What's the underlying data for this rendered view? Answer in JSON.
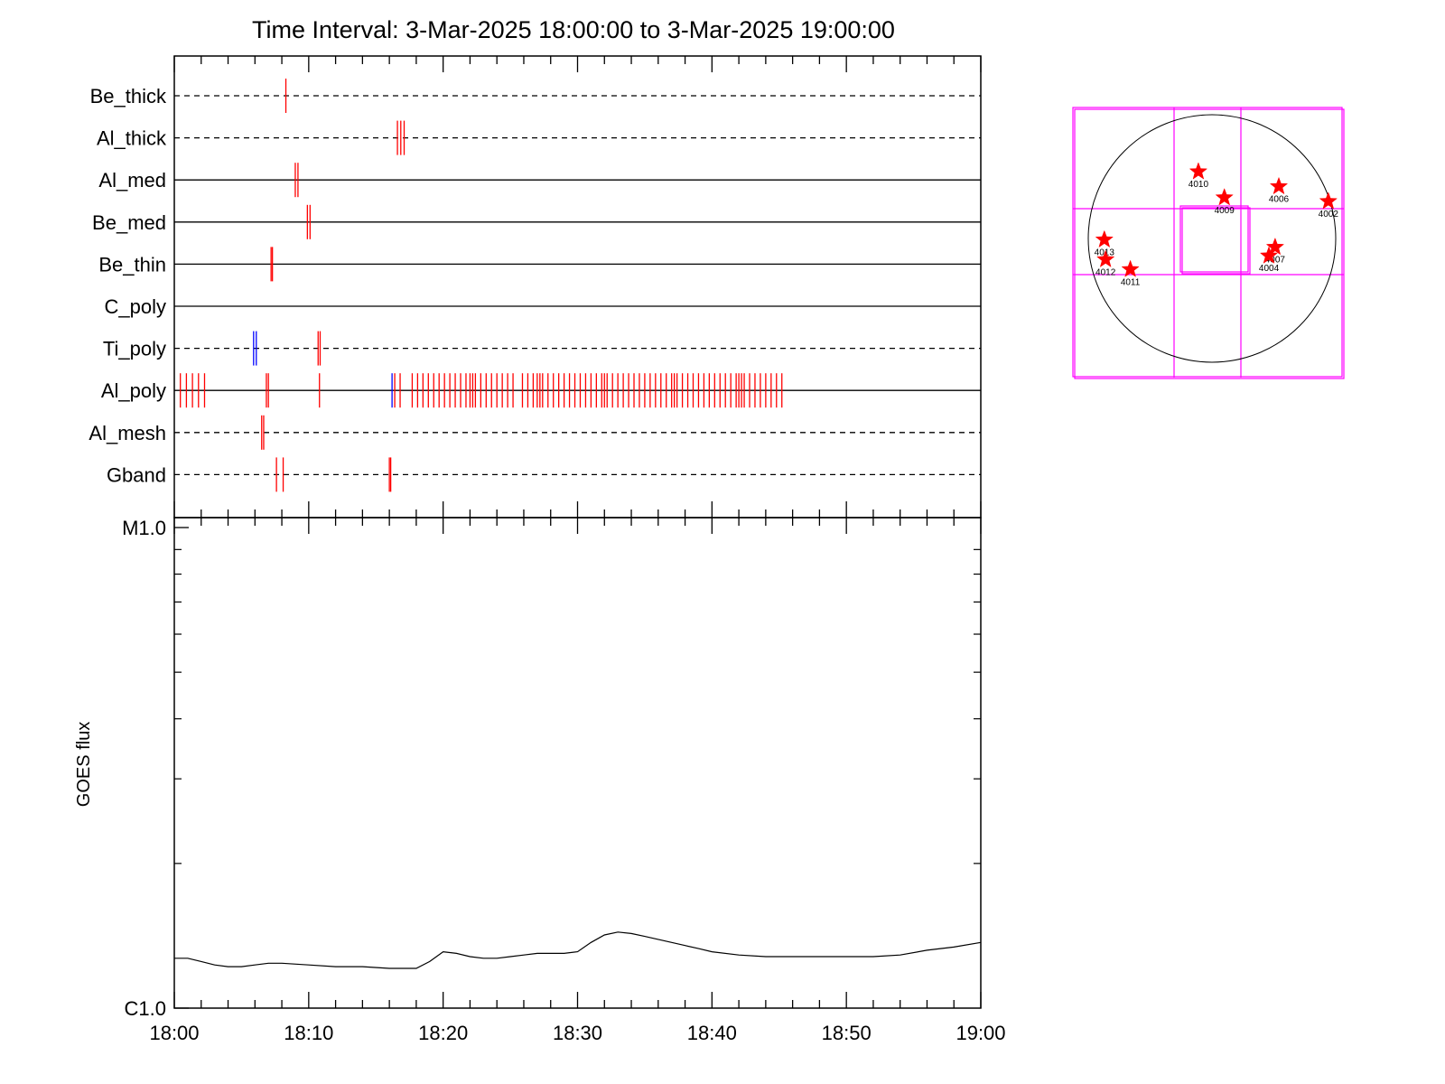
{
  "chart_data": [
    {
      "type": "scatter",
      "title": "Time Interval:  3-Mar-2025 18:00:00 to  3-Mar-2025 19:00:00",
      "xlabel": "",
      "x_units": "minutes after 18:00",
      "xlim": [
        0,
        60
      ],
      "x_tick_labels": [
        "18:00",
        "18:10",
        "18:20",
        "18:30",
        "18:40",
        "18:50",
        "19:00"
      ],
      "channels": [
        {
          "name": "Be_thick",
          "line": "dashed",
          "events": [
            {
              "t": 8.3,
              "color": "#ff0000"
            }
          ]
        },
        {
          "name": "Al_thick",
          "line": "dashed",
          "events": [
            {
              "t": 16.6,
              "color": "#ff0000"
            },
            {
              "t": 16.85,
              "color": "#ff0000"
            },
            {
              "t": 17.1,
              "color": "#ff0000"
            }
          ]
        },
        {
          "name": "Al_med",
          "line": "solid",
          "events": [
            {
              "t": 9.0,
              "color": "#ff0000"
            },
            {
              "t": 9.2,
              "color": "#ff0000"
            }
          ]
        },
        {
          "name": "Be_med",
          "line": "solid",
          "events": [
            {
              "t": 9.9,
              "color": "#ff0000"
            },
            {
              "t": 10.1,
              "color": "#ff0000"
            }
          ]
        },
        {
          "name": "Be_thin",
          "line": "solid",
          "events": [
            {
              "t": 7.2,
              "color": "#ff0000"
            },
            {
              "t": 7.3,
              "color": "#ff0000"
            }
          ]
        },
        {
          "name": "C_poly",
          "line": "solid",
          "events": []
        },
        {
          "name": "Ti_poly",
          "line": "dashed",
          "events": [
            {
              "t": 5.9,
              "color": "#0000ff"
            },
            {
              "t": 6.1,
              "color": "#0000ff"
            },
            {
              "t": 10.7,
              "color": "#ff0000"
            },
            {
              "t": 10.85,
              "color": "#ff0000"
            }
          ]
        },
        {
          "name": "Al_poly",
          "line": "solid",
          "events": [
            {
              "t": 0.45,
              "color": "#ff0000"
            },
            {
              "t": 0.9,
              "color": "#ff0000"
            },
            {
              "t": 1.35,
              "color": "#ff0000"
            },
            {
              "t": 1.8,
              "color": "#ff0000"
            },
            {
              "t": 2.25,
              "color": "#ff0000"
            },
            {
              "t": 6.85,
              "color": "#ff0000"
            },
            {
              "t": 7.0,
              "color": "#ff0000"
            },
            {
              "t": 10.8,
              "color": "#ff0000"
            },
            {
              "t": 16.2,
              "color": "#0000ff"
            },
            {
              "t": 16.4,
              "color": "#ff0000"
            },
            {
              "t": 16.8,
              "color": "#ff0000"
            },
            {
              "t": 17.7,
              "color": "#ff0000"
            },
            {
              "t": 18.1,
              "color": "#ff0000"
            },
            {
              "t": 18.5,
              "color": "#ff0000"
            },
            {
              "t": 18.9,
              "color": "#ff0000"
            },
            {
              "t": 19.3,
              "color": "#ff0000"
            },
            {
              "t": 19.7,
              "color": "#ff0000"
            },
            {
              "t": 20.1,
              "color": "#ff0000"
            },
            {
              "t": 20.5,
              "color": "#ff0000"
            },
            {
              "t": 20.9,
              "color": "#ff0000"
            },
            {
              "t": 21.3,
              "color": "#ff0000"
            },
            {
              "t": 21.7,
              "color": "#ff0000"
            },
            {
              "t": 22.0,
              "color": "#ff0000"
            },
            {
              "t": 22.2,
              "color": "#ff0000"
            },
            {
              "t": 22.4,
              "color": "#ff0000"
            },
            {
              "t": 22.8,
              "color": "#ff0000"
            },
            {
              "t": 23.2,
              "color": "#ff0000"
            },
            {
              "t": 23.6,
              "color": "#ff0000"
            },
            {
              "t": 24.0,
              "color": "#ff0000"
            },
            {
              "t": 24.4,
              "color": "#ff0000"
            },
            {
              "t": 24.8,
              "color": "#ff0000"
            },
            {
              "t": 25.2,
              "color": "#ff0000"
            },
            {
              "t": 25.9,
              "color": "#ff0000"
            },
            {
              "t": 26.3,
              "color": "#ff0000"
            },
            {
              "t": 26.7,
              "color": "#ff0000"
            },
            {
              "t": 27.0,
              "color": "#ff0000"
            },
            {
              "t": 27.2,
              "color": "#ff0000"
            },
            {
              "t": 27.4,
              "color": "#ff0000"
            },
            {
              "t": 27.8,
              "color": "#ff0000"
            },
            {
              "t": 28.2,
              "color": "#ff0000"
            },
            {
              "t": 28.6,
              "color": "#ff0000"
            },
            {
              "t": 29.0,
              "color": "#ff0000"
            },
            {
              "t": 29.4,
              "color": "#ff0000"
            },
            {
              "t": 29.8,
              "color": "#ff0000"
            },
            {
              "t": 30.2,
              "color": "#ff0000"
            },
            {
              "t": 30.6,
              "color": "#ff0000"
            },
            {
              "t": 31.0,
              "color": "#ff0000"
            },
            {
              "t": 31.4,
              "color": "#ff0000"
            },
            {
              "t": 31.8,
              "color": "#ff0000"
            },
            {
              "t": 32.0,
              "color": "#ff0000"
            },
            {
              "t": 32.2,
              "color": "#ff0000"
            },
            {
              "t": 32.6,
              "color": "#ff0000"
            },
            {
              "t": 33.0,
              "color": "#ff0000"
            },
            {
              "t": 33.4,
              "color": "#ff0000"
            },
            {
              "t": 33.8,
              "color": "#ff0000"
            },
            {
              "t": 34.2,
              "color": "#ff0000"
            },
            {
              "t": 34.6,
              "color": "#ff0000"
            },
            {
              "t": 35.0,
              "color": "#ff0000"
            },
            {
              "t": 35.4,
              "color": "#ff0000"
            },
            {
              "t": 35.8,
              "color": "#ff0000"
            },
            {
              "t": 36.2,
              "color": "#ff0000"
            },
            {
              "t": 36.6,
              "color": "#ff0000"
            },
            {
              "t": 37.0,
              "color": "#ff0000"
            },
            {
              "t": 37.2,
              "color": "#ff0000"
            },
            {
              "t": 37.4,
              "color": "#ff0000"
            },
            {
              "t": 37.8,
              "color": "#ff0000"
            },
            {
              "t": 38.2,
              "color": "#ff0000"
            },
            {
              "t": 38.6,
              "color": "#ff0000"
            },
            {
              "t": 39.0,
              "color": "#ff0000"
            },
            {
              "t": 39.4,
              "color": "#ff0000"
            },
            {
              "t": 39.8,
              "color": "#ff0000"
            },
            {
              "t": 40.2,
              "color": "#ff0000"
            },
            {
              "t": 40.6,
              "color": "#ff0000"
            },
            {
              "t": 41.0,
              "color": "#ff0000"
            },
            {
              "t": 41.4,
              "color": "#ff0000"
            },
            {
              "t": 41.8,
              "color": "#ff0000"
            },
            {
              "t": 42.0,
              "color": "#ff0000"
            },
            {
              "t": 42.2,
              "color": "#ff0000"
            },
            {
              "t": 42.4,
              "color": "#ff0000"
            },
            {
              "t": 42.8,
              "color": "#ff0000"
            },
            {
              "t": 43.2,
              "color": "#ff0000"
            },
            {
              "t": 43.6,
              "color": "#ff0000"
            },
            {
              "t": 44.0,
              "color": "#ff0000"
            },
            {
              "t": 44.4,
              "color": "#ff0000"
            },
            {
              "t": 44.8,
              "color": "#ff0000"
            },
            {
              "t": 45.2,
              "color": "#ff0000"
            }
          ]
        },
        {
          "name": "Al_mesh",
          "line": "dashed",
          "events": [
            {
              "t": 6.5,
              "color": "#ff0000"
            },
            {
              "t": 6.65,
              "color": "#ff0000"
            }
          ]
        },
        {
          "name": "Gband",
          "line": "dashed",
          "events": [
            {
              "t": 7.6,
              "color": "#ff0000"
            },
            {
              "t": 8.1,
              "color": "#ff0000"
            },
            {
              "t": 16.0,
              "color": "#ff0000"
            },
            {
              "t": 16.1,
              "color": "#ff0000"
            }
          ]
        }
      ]
    },
    {
      "type": "line",
      "ylabel": "GOES flux",
      "yscale": "log",
      "ylim": [
        1e-06,
        1e-05
      ],
      "y_tick_labels": [
        "C1.0",
        "M1.0"
      ],
      "xlim": [
        0,
        60
      ],
      "x_units": "minutes after 18:00",
      "x_tick_labels": [
        "18:00",
        "18:10",
        "18:20",
        "18:30",
        "18:40",
        "18:50",
        "19:00"
      ],
      "series": [
        {
          "x": [
            0,
            1,
            2,
            3,
            4,
            5,
            6,
            7,
            8,
            10,
            12,
            14,
            16,
            17,
            18,
            19,
            20,
            21,
            22,
            23,
            24,
            25,
            26,
            27,
            28,
            29,
            30,
            31,
            32,
            33,
            34,
            35,
            36,
            37,
            38,
            39,
            40,
            42,
            44,
            45,
            46,
            47,
            48,
            50,
            52,
            54,
            56,
            58,
            60
          ],
          "y": [
            1.27e-06,
            1.27e-06,
            1.25e-06,
            1.23e-06,
            1.22e-06,
            1.22e-06,
            1.23e-06,
            1.24e-06,
            1.24e-06,
            1.23e-06,
            1.22e-06,
            1.22e-06,
            1.21e-06,
            1.21e-06,
            1.21e-06,
            1.25e-06,
            1.31e-06,
            1.3e-06,
            1.28e-06,
            1.27e-06,
            1.27e-06,
            1.28e-06,
            1.29e-06,
            1.3e-06,
            1.3e-06,
            1.3e-06,
            1.31e-06,
            1.37e-06,
            1.42e-06,
            1.44e-06,
            1.43e-06,
            1.41e-06,
            1.39e-06,
            1.37e-06,
            1.35e-06,
            1.33e-06,
            1.31e-06,
            1.29e-06,
            1.28e-06,
            1.28e-06,
            1.28e-06,
            1.28e-06,
            1.28e-06,
            1.28e-06,
            1.28e-06,
            1.29e-06,
            1.32e-06,
            1.34e-06,
            1.37e-06
          ]
        }
      ]
    },
    {
      "type": "scatter",
      "layout": "solar-disk map with instrument field-of-view boxes",
      "units": "solar-disk coordinates, disk radius = 1, +x = west, +y = north",
      "disk_radius": 1.0,
      "fov_color": "#ff00ff",
      "marker_color": "#ff0000",
      "points": [
        {
          "label": "4010",
          "x": -0.11,
          "y": 0.54
        },
        {
          "label": "4009",
          "x": 0.1,
          "y": 0.33
        },
        {
          "label": "4006",
          "x": 0.54,
          "y": 0.42
        },
        {
          "label": "4002",
          "x": 0.94,
          "y": 0.3
        },
        {
          "label": "4013",
          "x": -0.87,
          "y": -0.01
        },
        {
          "label": "4012",
          "x": -0.86,
          "y": -0.17
        },
        {
          "label": "4011",
          "x": -0.66,
          "y": -0.25
        },
        {
          "label": "4007",
          "x": 0.51,
          "y": -0.07
        },
        {
          "label": "4004",
          "x": 0.46,
          "y": -0.14
        }
      ]
    }
  ]
}
